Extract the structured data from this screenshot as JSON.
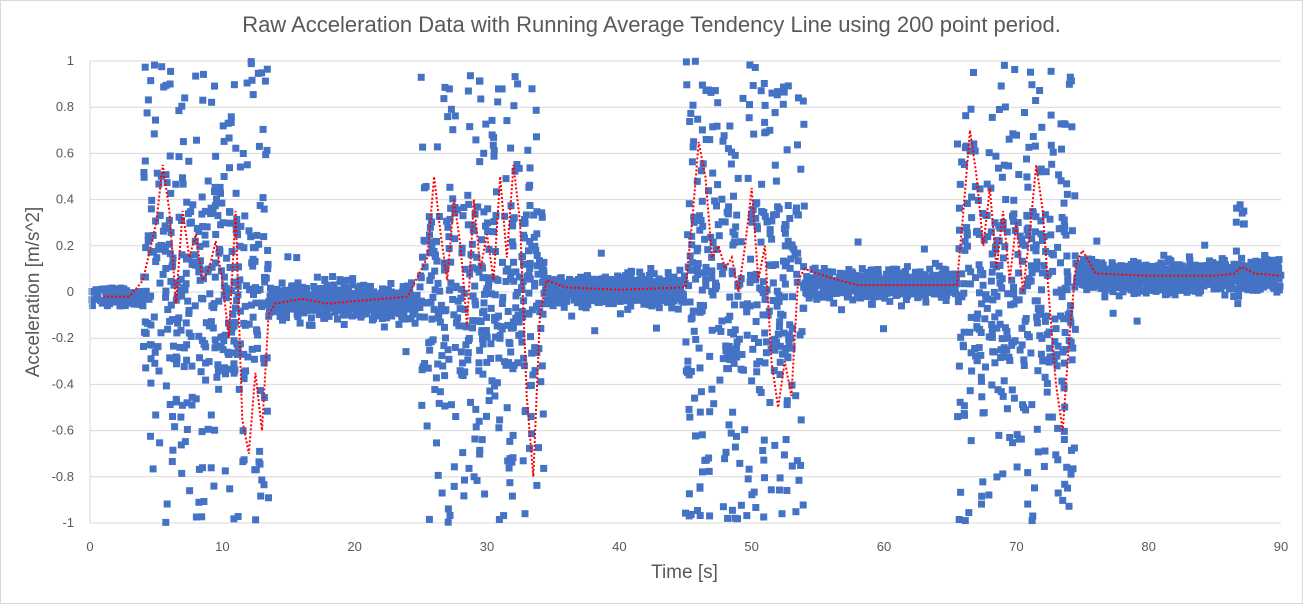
{
  "chart_data": {
    "type": "scatter",
    "title": "Raw Acceleration Data with Running Average Tendency Line using 200 point period.",
    "xlabel": "Time [s]",
    "ylabel": "Acceleration [m/s^2]",
    "xlim": [
      0,
      90
    ],
    "ylim": [
      -1,
      1
    ],
    "x_ticks": [
      "0",
      "10",
      "20",
      "30",
      "40",
      "50",
      "60",
      "70",
      "80",
      "90"
    ],
    "y_ticks": [
      "1",
      "0.8",
      "0.6",
      "0.4",
      "0.2",
      "0",
      "-0.2",
      "-0.4",
      "-0.6",
      "-0.8",
      "-1"
    ],
    "grid": "horizontal",
    "legend": "none",
    "colors": {
      "raw": "#4472c4",
      "trend": "#ff0000",
      "grid": "#d9d9d9",
      "text": "#595959"
    },
    "segments": [
      {
        "activity": "burst",
        "x_start": 4.0,
        "x_end": 13.5,
        "amplitude": 1.0
      },
      {
        "activity": "rest",
        "x_start": 13.5,
        "x_end": 25.0,
        "center": -0.04,
        "spread": 0.12
      },
      {
        "activity": "burst",
        "x_start": 25.0,
        "x_end": 34.3,
        "amplitude": 1.0
      },
      {
        "activity": "rest",
        "x_start": 34.3,
        "x_end": 45.0,
        "center": 0.01,
        "spread": 0.1
      },
      {
        "activity": "burst",
        "x_start": 45.0,
        "x_end": 54.0,
        "amplitude": 1.0
      },
      {
        "activity": "rest",
        "x_start": 54.0,
        "x_end": 65.5,
        "center": 0.03,
        "spread": 0.1
      },
      {
        "activity": "burst",
        "x_start": 65.5,
        "x_end": 74.5,
        "amplitude": 1.0
      },
      {
        "activity": "rest",
        "x_start": 74.5,
        "x_end": 90.0,
        "center": 0.07,
        "spread": 0.1
      }
    ],
    "series": [
      {
        "role": "raw",
        "marker": "square"
      },
      {
        "role": "running-average",
        "line": "dotted",
        "x": [
          1,
          3,
          4,
          5,
          5.5,
          6,
          6.5,
          7,
          7.5,
          8,
          8.5,
          9,
          9.5,
          10,
          10.5,
          11,
          11.5,
          12,
          12.5,
          13,
          13.5,
          14,
          16,
          18,
          20,
          22,
          24,
          25.5,
          26,
          26.5,
          27,
          27.5,
          28,
          28.5,
          29,
          29.5,
          30,
          30.5,
          31,
          31.5,
          32,
          32.5,
          33,
          33.5,
          34,
          34.5,
          36,
          40,
          45,
          45.5,
          46,
          46.5,
          47,
          47.5,
          48,
          48.5,
          49,
          49.5,
          50,
          50.5,
          51,
          51.5,
          52,
          52.5,
          53,
          53.5,
          54,
          56,
          58,
          62,
          65.5,
          66,
          66.5,
          67,
          67.5,
          68,
          68.5,
          69,
          69.5,
          70,
          70.5,
          71,
          71.5,
          72,
          72.5,
          73,
          73.5,
          74,
          74.5,
          75,
          76,
          80,
          85,
          86.5,
          87,
          88,
          90
        ],
        "y": [
          -0.02,
          -0.02,
          0.05,
          0.3,
          0.55,
          0.35,
          -0.05,
          0.35,
          0.15,
          0.25,
          0.05,
          0.1,
          0.22,
          0.05,
          -0.2,
          0.35,
          -0.55,
          -0.7,
          -0.35,
          -0.6,
          -0.1,
          -0.05,
          -0.03,
          -0.05,
          -0.04,
          -0.03,
          -0.02,
          0.15,
          0.5,
          0.25,
          0.05,
          0.4,
          0.2,
          -0.15,
          0.4,
          0.1,
          0.25,
          0.05,
          0.5,
          0.15,
          0.55,
          0.3,
          -0.45,
          -0.8,
          -0.1,
          0.05,
          0.02,
          0.01,
          0.02,
          0.3,
          0.65,
          0.5,
          0.15,
          0.2,
          0.1,
          0.15,
          0.0,
          0.2,
          0.45,
          0.05,
          0.2,
          -0.3,
          -0.5,
          -0.3,
          -0.45,
          0.05,
          0.1,
          0.06,
          0.03,
          0.03,
          0.03,
          0.35,
          0.7,
          0.5,
          0.2,
          0.45,
          0.1,
          0.35,
          0.05,
          0.3,
          0.0,
          0.25,
          0.55,
          0.35,
          -0.05,
          -0.4,
          -0.6,
          -0.2,
          0.12,
          0.18,
          0.08,
          0.07,
          0.07,
          0.08,
          0.11,
          0.08,
          0.07
        ]
      }
    ]
  }
}
